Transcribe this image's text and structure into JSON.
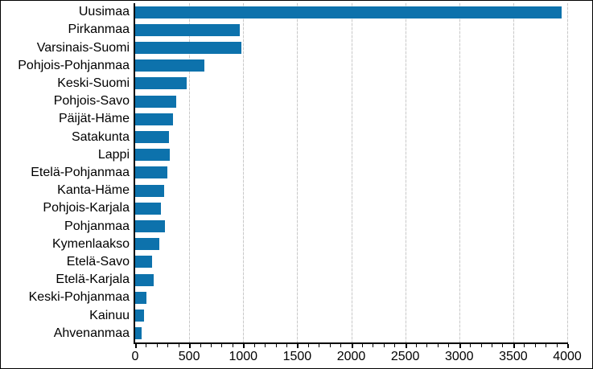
{
  "chart_data": {
    "type": "bar",
    "orientation": "horizontal",
    "title": "",
    "xlabel": "",
    "ylabel": "",
    "categories": [
      "Uusimaa",
      "Pirkanmaa",
      "Varsinais-Suomi",
      "Pohjois-Pohjanmaa",
      "Keski-Suomi",
      "Pohjois-Savo",
      "Päijät-Häme",
      "Satakunta",
      "Lappi",
      "Etelä-Pohjanmaa",
      "Kanta-Häme",
      "Pohjois-Karjala",
      "Pohjanmaa",
      "Kymenlaakso",
      "Etelä-Savo",
      "Etelä-Karjala",
      "Keski-Pohjanmaa",
      "Kainuu",
      "Ahvenanmaa"
    ],
    "values": [
      3950,
      970,
      985,
      640,
      475,
      380,
      350,
      315,
      320,
      295,
      270,
      235,
      275,
      220,
      160,
      170,
      105,
      85,
      60
    ],
    "xlim": [
      0,
      4000
    ],
    "x_major_ticks": [
      0,
      500,
      1000,
      1500,
      2000,
      2500,
      3000,
      3500,
      4000
    ],
    "x_minor_tick_step": 100,
    "grid": "vertical-major-only",
    "legend": "none",
    "colors": {
      "bar": "#0d72ac",
      "axis": "#000000",
      "gridline": "#c9c9c9",
      "label_text": "#000000",
      "background": "#ffffff",
      "frame_border": "#000000"
    }
  }
}
